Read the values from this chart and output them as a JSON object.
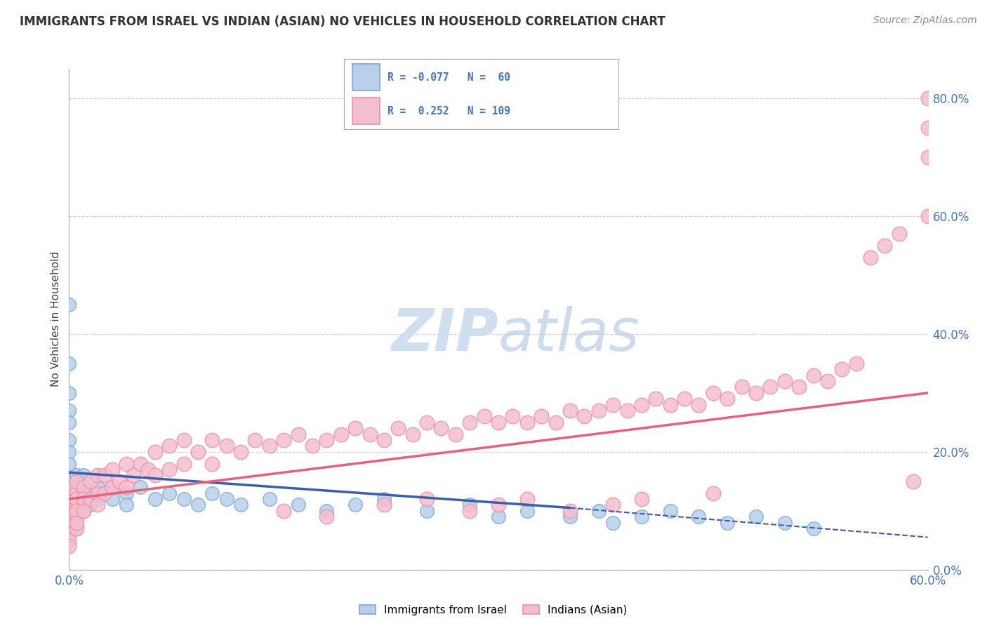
{
  "title": "IMMIGRANTS FROM ISRAEL VS INDIAN (ASIAN) NO VEHICLES IN HOUSEHOLD CORRELATION CHART",
  "source": "Source: ZipAtlas.com",
  "ylabel": "No Vehicles in Household",
  "ytick_vals": [
    0.0,
    20.0,
    40.0,
    60.0,
    80.0
  ],
  "xlim": [
    0.0,
    60.0
  ],
  "ylim": [
    0.0,
    85.0
  ],
  "color_israel": "#b8d0ea",
  "color_israel_edge": "#7ba7d4",
  "color_indian": "#f5bece",
  "color_indian_edge": "#e890aa",
  "color_israel_line": "#3a5fa8",
  "color_indian_line": "#e8607a",
  "color_grid": "#d0d0d0",
  "watermark_color": "#d0dff0",
  "israel_x": [
    0.0,
    0.0,
    0.0,
    0.0,
    0.0,
    0.0,
    0.0,
    0.0,
    0.0,
    0.0,
    0.5,
    0.5,
    0.5,
    0.5,
    0.5,
    0.5,
    0.5,
    0.5,
    0.5,
    0.5,
    1.0,
    1.0,
    1.0,
    1.0,
    1.5,
    1.5,
    2.0,
    2.0,
    2.5,
    3.0,
    3.0,
    4.0,
    4.0,
    5.0,
    6.0,
    7.0,
    8.0,
    9.0,
    10.0,
    11.0,
    12.0,
    14.0,
    16.0,
    18.0,
    20.0,
    22.0,
    25.0,
    28.0,
    30.0,
    32.0,
    35.0,
    37.0,
    38.0,
    40.0,
    42.0,
    44.0,
    46.0,
    48.0,
    50.0,
    52.0
  ],
  "israel_y": [
    45.0,
    35.0,
    30.0,
    27.0,
    25.0,
    22.0,
    20.0,
    18.0,
    15.0,
    12.0,
    16.0,
    15.0,
    14.0,
    13.0,
    12.0,
    11.0,
    10.0,
    9.0,
    8.0,
    7.0,
    16.0,
    14.0,
    12.0,
    10.0,
    13.0,
    11.0,
    14.0,
    12.0,
    13.0,
    14.0,
    12.0,
    13.0,
    11.0,
    14.0,
    12.0,
    13.0,
    12.0,
    11.0,
    13.0,
    12.0,
    11.0,
    12.0,
    11.0,
    10.0,
    11.0,
    12.0,
    10.0,
    11.0,
    9.0,
    10.0,
    9.0,
    10.0,
    8.0,
    9.0,
    10.0,
    9.0,
    8.0,
    9.0,
    8.0,
    7.0
  ],
  "indian_x": [
    0.0,
    0.0,
    0.0,
    0.0,
    0.0,
    0.0,
    0.0,
    0.0,
    0.0,
    0.0,
    0.5,
    0.5,
    0.5,
    0.5,
    0.5,
    0.5,
    0.5,
    0.5,
    1.0,
    1.0,
    1.0,
    1.5,
    1.5,
    2.0,
    2.0,
    2.0,
    2.5,
    2.5,
    3.0,
    3.0,
    3.5,
    4.0,
    4.0,
    4.5,
    5.0,
    5.5,
    6.0,
    6.0,
    7.0,
    7.0,
    8.0,
    8.0,
    9.0,
    10.0,
    10.0,
    11.0,
    12.0,
    13.0,
    14.0,
    15.0,
    16.0,
    17.0,
    18.0,
    19.0,
    20.0,
    21.0,
    22.0,
    23.0,
    24.0,
    25.0,
    26.0,
    27.0,
    28.0,
    29.0,
    30.0,
    31.0,
    32.0,
    33.0,
    34.0,
    35.0,
    36.0,
    37.0,
    38.0,
    39.0,
    40.0,
    41.0,
    42.0,
    43.0,
    44.0,
    45.0,
    46.0,
    47.0,
    48.0,
    49.0,
    50.0,
    51.0,
    52.0,
    53.0,
    54.0,
    55.0,
    56.0,
    57.0,
    58.0,
    59.0,
    60.0,
    60.0,
    60.0,
    60.0,
    15.0,
    18.0,
    22.0,
    25.0,
    28.0,
    30.0,
    32.0,
    35.0,
    38.0,
    40.0,
    45.0
  ],
  "indian_y": [
    10.0,
    12.0,
    8.0,
    6.0,
    14.0,
    11.0,
    9.0,
    7.0,
    5.0,
    4.0,
    13.0,
    11.0,
    9.0,
    7.0,
    15.0,
    12.0,
    10.0,
    8.0,
    14.0,
    12.0,
    10.0,
    15.0,
    12.0,
    16.0,
    13.0,
    11.0,
    16.0,
    13.0,
    17.0,
    14.0,
    15.0,
    18.0,
    14.0,
    16.0,
    18.0,
    17.0,
    20.0,
    16.0,
    21.0,
    17.0,
    22.0,
    18.0,
    20.0,
    22.0,
    18.0,
    21.0,
    20.0,
    22.0,
    21.0,
    22.0,
    23.0,
    21.0,
    22.0,
    23.0,
    24.0,
    23.0,
    22.0,
    24.0,
    23.0,
    25.0,
    24.0,
    23.0,
    25.0,
    26.0,
    25.0,
    26.0,
    25.0,
    26.0,
    25.0,
    27.0,
    26.0,
    27.0,
    28.0,
    27.0,
    28.0,
    29.0,
    28.0,
    29.0,
    28.0,
    30.0,
    29.0,
    31.0,
    30.0,
    31.0,
    32.0,
    31.0,
    33.0,
    32.0,
    34.0,
    35.0,
    53.0,
    55.0,
    57.0,
    15.0,
    75.0,
    70.0,
    80.0,
    60.0,
    10.0,
    9.0,
    11.0,
    12.0,
    10.0,
    11.0,
    12.0,
    10.0,
    11.0,
    12.0,
    13.0
  ],
  "israel_trend_x0": 0.0,
  "israel_trend_y0": 16.5,
  "israel_trend_x1": 35.0,
  "israel_trend_y1": 10.5,
  "israel_dash_x0": 35.0,
  "israel_dash_y0": 10.5,
  "israel_dash_x1": 60.0,
  "israel_dash_y1": 5.5,
  "indian_trend_x0": 0.0,
  "indian_trend_y0": 12.0,
  "indian_trend_x1": 60.0,
  "indian_trend_y1": 30.0
}
